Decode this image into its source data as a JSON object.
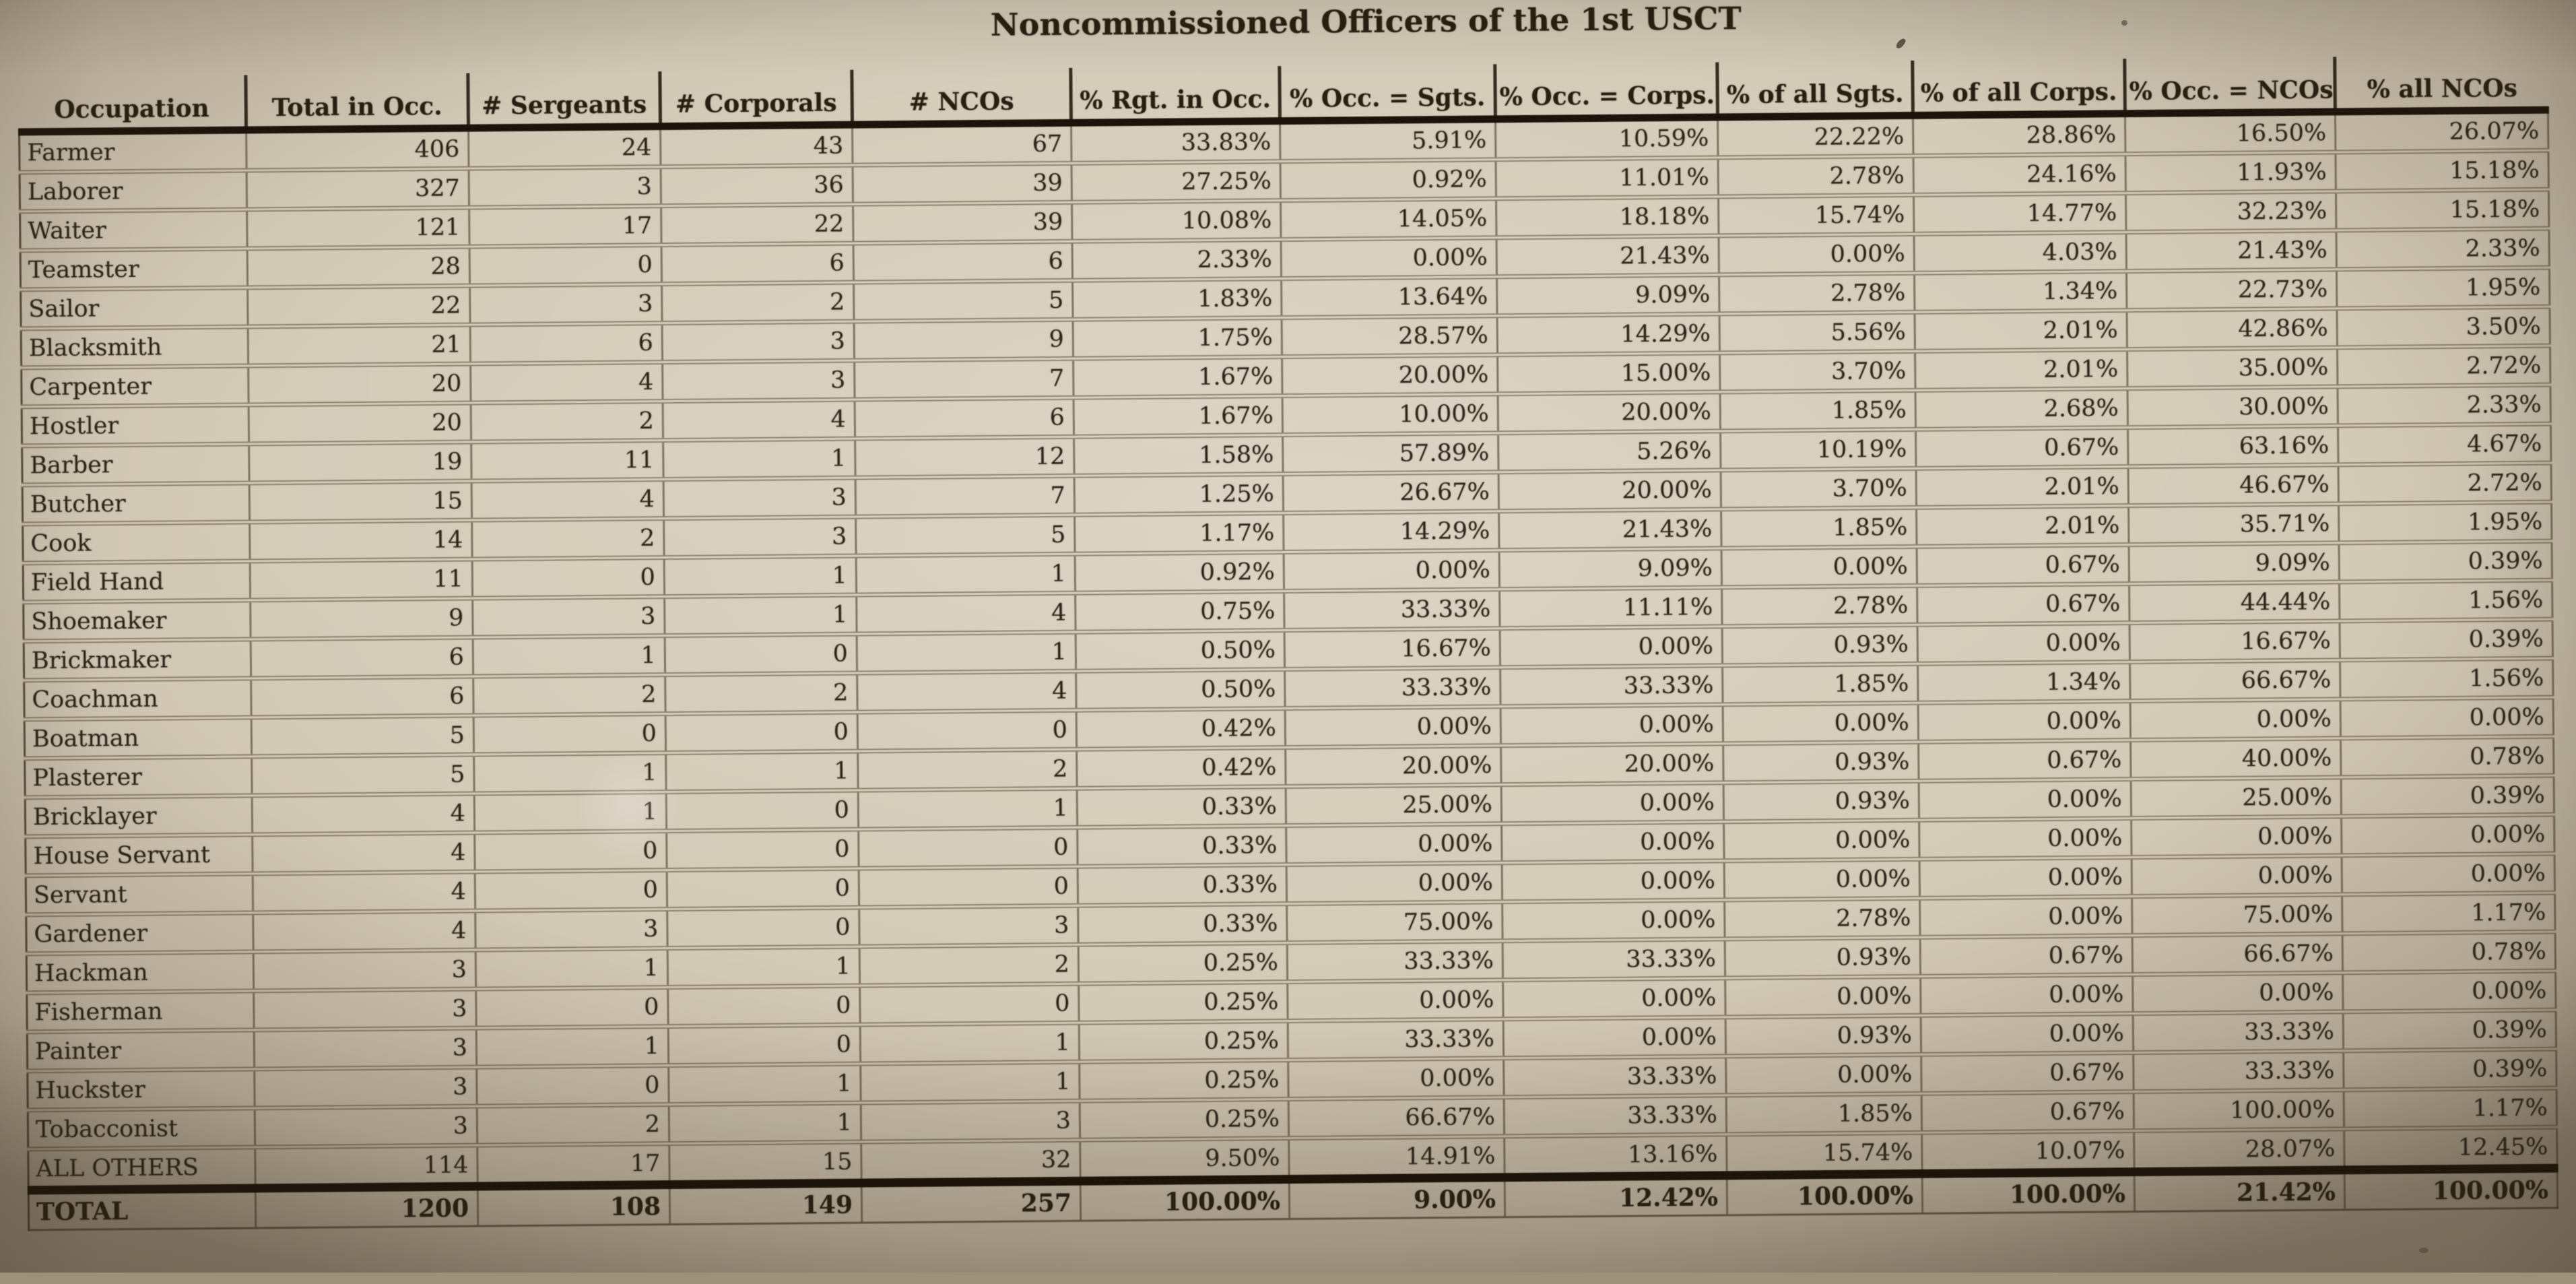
{
  "title": "Noncommissioned Officers of the 1st USCT",
  "table": {
    "columns": [
      "Occupation",
      "Total in Occ.",
      "# Sergeants",
      "# Corporals",
      "# NCOs",
      "% Rgt. in Occ.",
      "% Occ. = Sgts.",
      "% Occ. = Corps.",
      "% of all Sgts.",
      "% of all Corps.",
      "% Occ. = NCOs",
      "% all NCOs"
    ],
    "rows": [
      [
        "Farmer",
        "406",
        "24",
        "43",
        "67",
        "33.83%",
        "5.91%",
        "10.59%",
        "22.22%",
        "28.86%",
        "16.50%",
        "26.07%"
      ],
      [
        "Laborer",
        "327",
        "3",
        "36",
        "39",
        "27.25%",
        "0.92%",
        "11.01%",
        "2.78%",
        "24.16%",
        "11.93%",
        "15.18%"
      ],
      [
        "Waiter",
        "121",
        "17",
        "22",
        "39",
        "10.08%",
        "14.05%",
        "18.18%",
        "15.74%",
        "14.77%",
        "32.23%",
        "15.18%"
      ],
      [
        "Teamster",
        "28",
        "0",
        "6",
        "6",
        "2.33%",
        "0.00%",
        "21.43%",
        "0.00%",
        "4.03%",
        "21.43%",
        "2.33%"
      ],
      [
        "Sailor",
        "22",
        "3",
        "2",
        "5",
        "1.83%",
        "13.64%",
        "9.09%",
        "2.78%",
        "1.34%",
        "22.73%",
        "1.95%"
      ],
      [
        "Blacksmith",
        "21",
        "6",
        "3",
        "9",
        "1.75%",
        "28.57%",
        "14.29%",
        "5.56%",
        "2.01%",
        "42.86%",
        "3.50%"
      ],
      [
        "Carpenter",
        "20",
        "4",
        "3",
        "7",
        "1.67%",
        "20.00%",
        "15.00%",
        "3.70%",
        "2.01%",
        "35.00%",
        "2.72%"
      ],
      [
        "Hostler",
        "20",
        "2",
        "4",
        "6",
        "1.67%",
        "10.00%",
        "20.00%",
        "1.85%",
        "2.68%",
        "30.00%",
        "2.33%"
      ],
      [
        "Barber",
        "19",
        "11",
        "1",
        "12",
        "1.58%",
        "57.89%",
        "5.26%",
        "10.19%",
        "0.67%",
        "63.16%",
        "4.67%"
      ],
      [
        "Butcher",
        "15",
        "4",
        "3",
        "7",
        "1.25%",
        "26.67%",
        "20.00%",
        "3.70%",
        "2.01%",
        "46.67%",
        "2.72%"
      ],
      [
        "Cook",
        "14",
        "2",
        "3",
        "5",
        "1.17%",
        "14.29%",
        "21.43%",
        "1.85%",
        "2.01%",
        "35.71%",
        "1.95%"
      ],
      [
        "Field Hand",
        "11",
        "0",
        "1",
        "1",
        "0.92%",
        "0.00%",
        "9.09%",
        "0.00%",
        "0.67%",
        "9.09%",
        "0.39%"
      ],
      [
        "Shoemaker",
        "9",
        "3",
        "1",
        "4",
        "0.75%",
        "33.33%",
        "11.11%",
        "2.78%",
        "0.67%",
        "44.44%",
        "1.56%"
      ],
      [
        "Brickmaker",
        "6",
        "1",
        "0",
        "1",
        "0.50%",
        "16.67%",
        "0.00%",
        "0.93%",
        "0.00%",
        "16.67%",
        "0.39%"
      ],
      [
        "Coachman",
        "6",
        "2",
        "2",
        "4",
        "0.50%",
        "33.33%",
        "33.33%",
        "1.85%",
        "1.34%",
        "66.67%",
        "1.56%"
      ],
      [
        "Boatman",
        "5",
        "0",
        "0",
        "0",
        "0.42%",
        "0.00%",
        "0.00%",
        "0.00%",
        "0.00%",
        "0.00%",
        "0.00%"
      ],
      [
        "Plasterer",
        "5",
        "1",
        "1",
        "2",
        "0.42%",
        "20.00%",
        "20.00%",
        "0.93%",
        "0.67%",
        "40.00%",
        "0.78%"
      ],
      [
        "Bricklayer",
        "4",
        "1",
        "0",
        "1",
        "0.33%",
        "25.00%",
        "0.00%",
        "0.93%",
        "0.00%",
        "25.00%",
        "0.39%"
      ],
      [
        "House Servant",
        "4",
        "0",
        "0",
        "0",
        "0.33%",
        "0.00%",
        "0.00%",
        "0.00%",
        "0.00%",
        "0.00%",
        "0.00%"
      ],
      [
        "Servant",
        "4",
        "0",
        "0",
        "0",
        "0.33%",
        "0.00%",
        "0.00%",
        "0.00%",
        "0.00%",
        "0.00%",
        "0.00%"
      ],
      [
        "Gardener",
        "4",
        "3",
        "0",
        "3",
        "0.33%",
        "75.00%",
        "0.00%",
        "2.78%",
        "0.00%",
        "75.00%",
        "1.17%"
      ],
      [
        "Hackman",
        "3",
        "1",
        "1",
        "2",
        "0.25%",
        "33.33%",
        "33.33%",
        "0.93%",
        "0.67%",
        "66.67%",
        "0.78%"
      ],
      [
        "Fisherman",
        "3",
        "0",
        "0",
        "0",
        "0.25%",
        "0.00%",
        "0.00%",
        "0.00%",
        "0.00%",
        "0.00%",
        "0.00%"
      ],
      [
        "Painter",
        "3",
        "1",
        "0",
        "1",
        "0.25%",
        "33.33%",
        "0.00%",
        "0.93%",
        "0.00%",
        "33.33%",
        "0.39%"
      ],
      [
        "Huckster",
        "3",
        "0",
        "1",
        "1",
        "0.25%",
        "0.00%",
        "33.33%",
        "0.00%",
        "0.67%",
        "33.33%",
        "0.39%"
      ],
      [
        "Tobacconist",
        "3",
        "2",
        "1",
        "3",
        "0.25%",
        "66.67%",
        "33.33%",
        "1.85%",
        "0.67%",
        "100.00%",
        "1.17%"
      ],
      [
        "ALL OTHERS",
        "114",
        "17",
        "15",
        "32",
        "9.50%",
        "14.91%",
        "13.16%",
        "15.74%",
        "10.07%",
        "28.07%",
        "12.45%"
      ]
    ],
    "total_row": [
      "TOTAL",
      "1200",
      "108",
      "149",
      "257",
      "100.00%",
      "9.00%",
      "12.42%",
      "100.00%",
      "100.00%",
      "21.42%",
      "100.00%"
    ]
  },
  "photo": {
    "paper_color": "#d2c8b5",
    "ink_color": "#2e261b",
    "rule_color": "#1c140a"
  }
}
